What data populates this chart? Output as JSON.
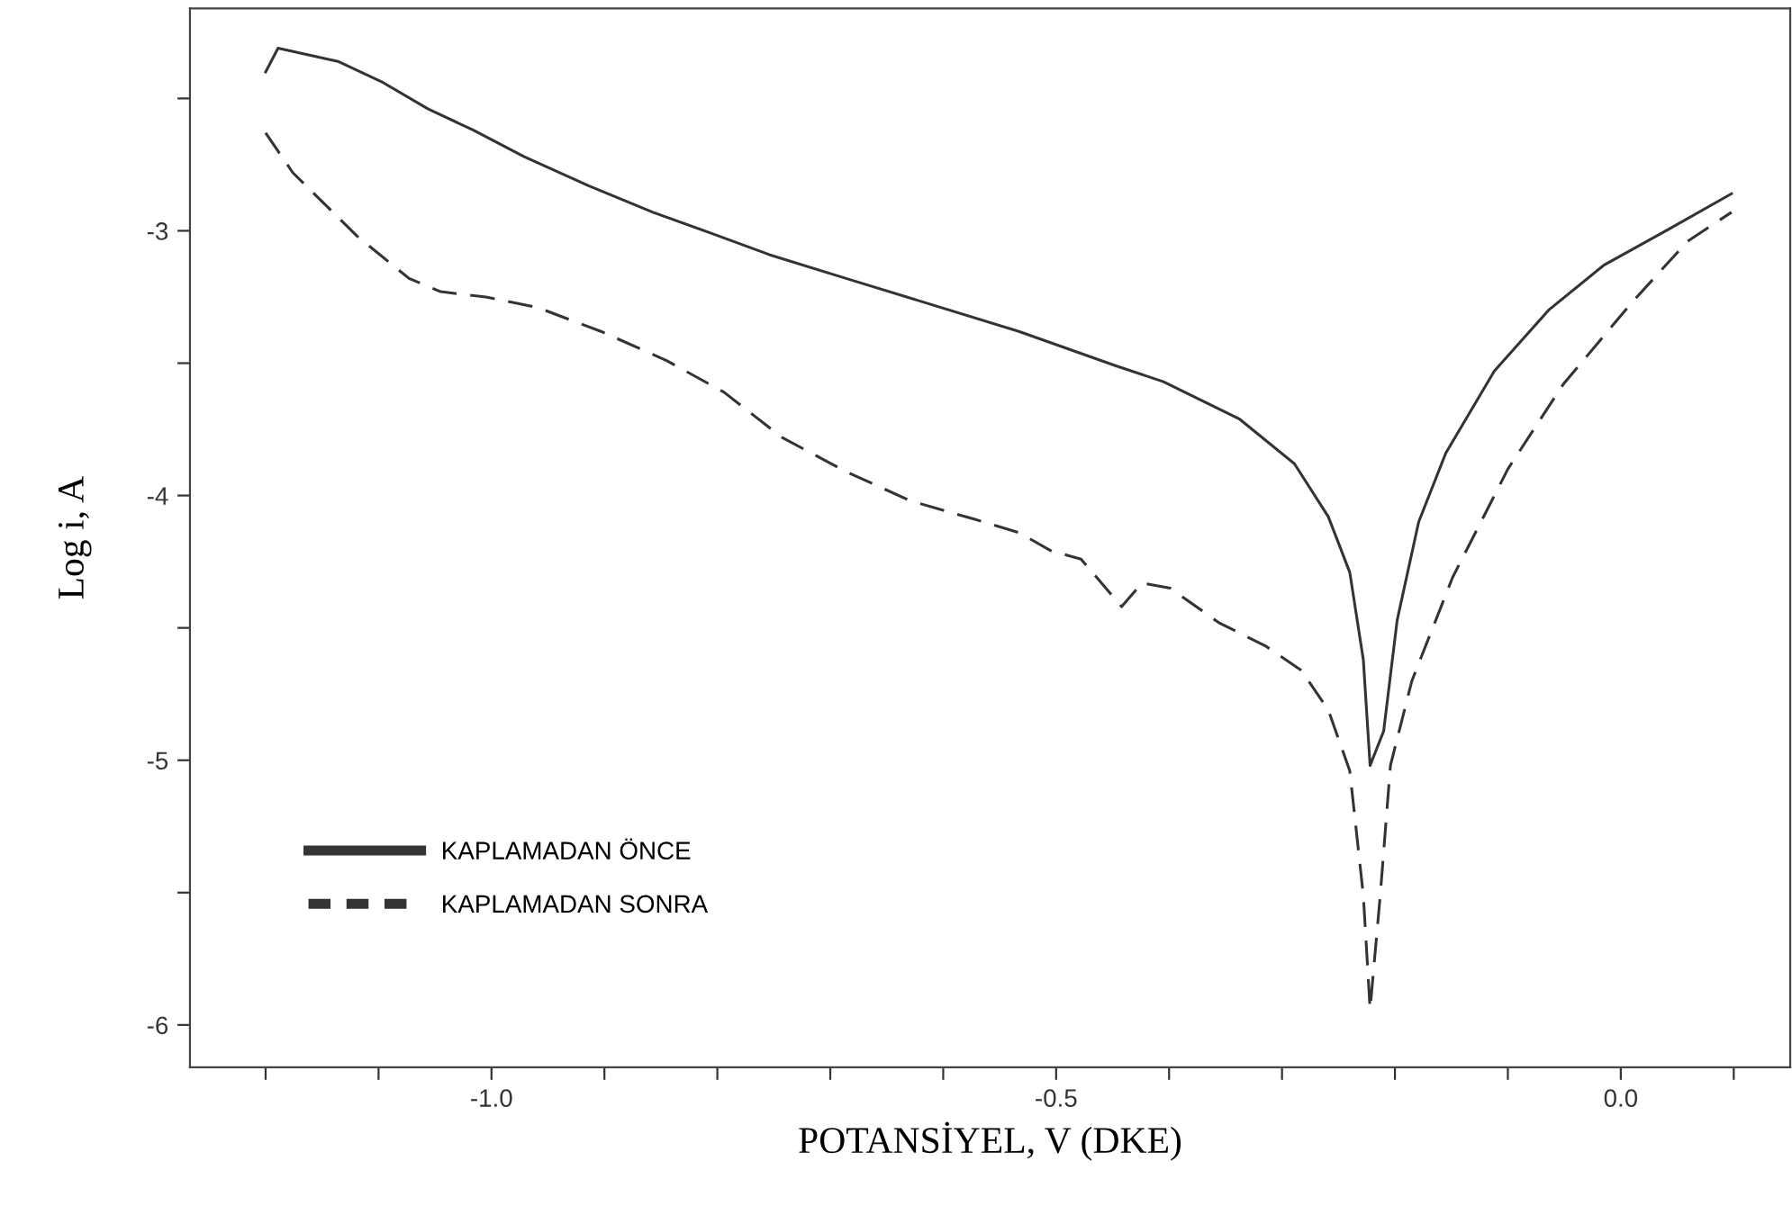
{
  "chart_data": {
    "type": "line",
    "xlabel": "POTANSİYEL, V (DKE)",
    "ylabel": "Log i, A",
    "xlim": [
      -1.267,
      0.15
    ],
    "ylim": [
      -6.16,
      -2.16
    ],
    "xticks": [
      {
        "value": -1.2,
        "label": null
      },
      {
        "value": -1.1,
        "label": null
      },
      {
        "value": -1.0,
        "label": "-1.0"
      },
      {
        "value": -0.9,
        "label": null
      },
      {
        "value": -0.8,
        "label": null
      },
      {
        "value": -0.7,
        "label": null
      },
      {
        "value": -0.6,
        "label": null
      },
      {
        "value": -0.5,
        "label": "-0.5"
      },
      {
        "value": -0.4,
        "label": null
      },
      {
        "value": -0.3,
        "label": null
      },
      {
        "value": -0.2,
        "label": null
      },
      {
        "value": -0.1,
        "label": null
      },
      {
        "value": 0.0,
        "label": "0.0"
      },
      {
        "value": 0.1,
        "label": null
      }
    ],
    "yticks": [
      {
        "value": -2.5,
        "label": null
      },
      -3,
      {
        "value": -3.5,
        "label": null
      },
      -4,
      {
        "value": -4.5,
        "label": null
      },
      -5,
      {
        "value": -5.5,
        "label": null
      },
      -6
    ],
    "grid": false,
    "legend": "bottom left",
    "marker": "none",
    "series": [
      {
        "name": "KAPLAMADAN ÖNCE",
        "color": "#333333",
        "line_style": "solid",
        "x": [
          -1.2,
          -1.189,
          -1.136,
          -1.096,
          -1.056,
          -1.016,
          -0.971,
          -0.914,
          -0.857,
          -0.805,
          -0.754,
          -0.686,
          -0.617,
          -0.533,
          -0.447,
          -0.405,
          -0.338,
          -0.289,
          -0.259,
          -0.24,
          -0.228,
          -0.222,
          -0.21,
          -0.198,
          -0.179,
          -0.155,
          -0.112,
          -0.064,
          -0.015,
          0.04,
          0.098
        ],
        "values": [
          -2.4,
          -2.31,
          -2.36,
          -2.44,
          -2.54,
          -2.62,
          -2.72,
          -2.83,
          -2.93,
          -3.01,
          -3.09,
          -3.18,
          -3.27,
          -3.38,
          -3.51,
          -3.57,
          -3.71,
          -3.88,
          -4.08,
          -4.29,
          -4.62,
          -5.02,
          -4.89,
          -4.47,
          -4.1,
          -3.84,
          -3.53,
          -3.3,
          -3.13,
          -3.0,
          -2.86
        ]
      },
      {
        "name": "KAPLAMADAN SONRA",
        "color": "#333333",
        "line_style": "dashed",
        "x": [
          -1.2,
          -1.176,
          -1.119,
          -1.073,
          -1.045,
          -1.005,
          -0.959,
          -0.903,
          -0.845,
          -0.794,
          -0.743,
          -0.686,
          -0.629,
          -0.572,
          -0.533,
          -0.504,
          -0.478,
          -0.442,
          -0.424,
          -0.399,
          -0.356,
          -0.314,
          -0.283,
          -0.259,
          -0.24,
          -0.228,
          -0.222,
          -0.213,
          -0.204,
          -0.185,
          -0.149,
          -0.1,
          -0.051,
          0.01,
          0.059,
          0.098
        ],
        "values": [
          -2.63,
          -2.78,
          -3.02,
          -3.18,
          -3.23,
          -3.25,
          -3.29,
          -3.38,
          -3.49,
          -3.61,
          -3.78,
          -3.91,
          -4.02,
          -4.09,
          -4.14,
          -4.21,
          -4.24,
          -4.42,
          -4.33,
          -4.35,
          -4.48,
          -4.57,
          -4.66,
          -4.81,
          -5.04,
          -5.51,
          -5.94,
          -5.51,
          -5.02,
          -4.7,
          -4.31,
          -3.9,
          -3.58,
          -3.27,
          -3.04,
          -2.93
        ]
      }
    ]
  }
}
